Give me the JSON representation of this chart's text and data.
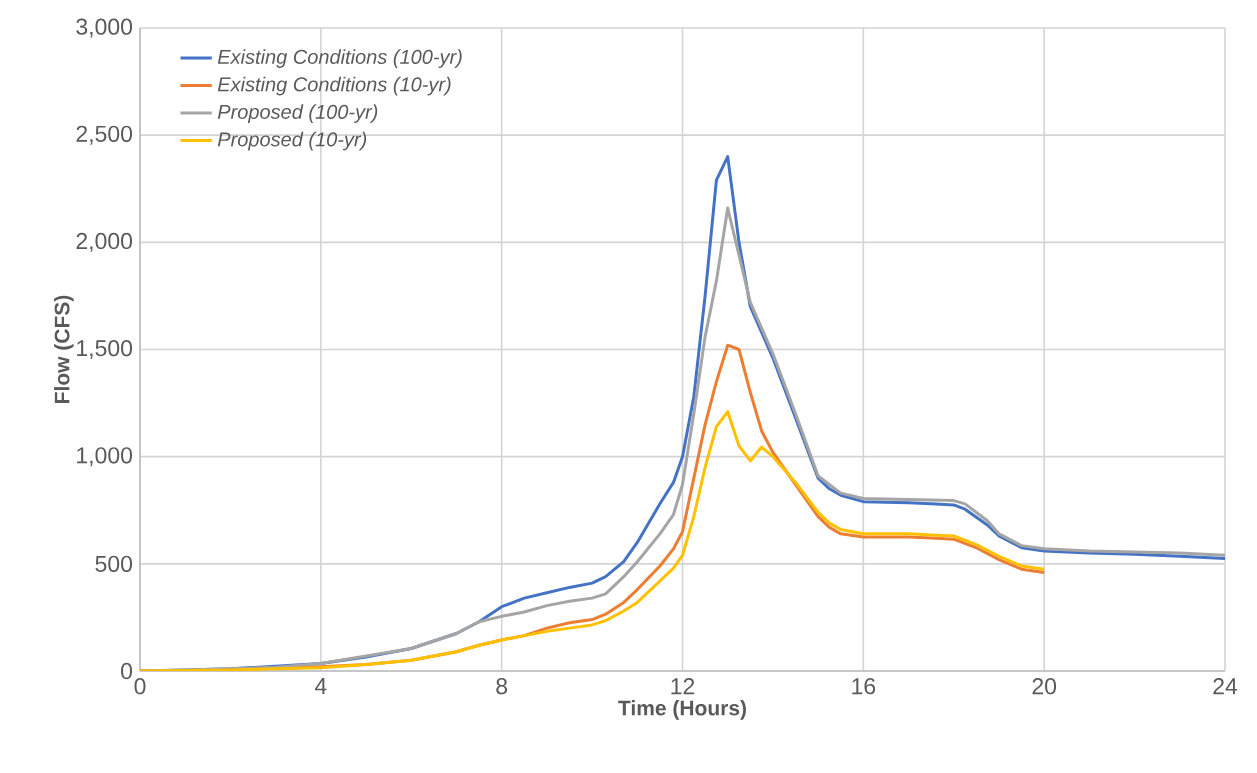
{
  "chart_data": {
    "type": "line",
    "xlabel": "Time (Hours)",
    "ylabel": "Flow (CFS)",
    "xlim": [
      0,
      24
    ],
    "ylim": [
      0,
      3000
    ],
    "xticks": [
      0,
      4,
      8,
      12,
      16,
      20,
      24
    ],
    "yticks": [
      0,
      500,
      {
        "value": 1000,
        "label": "1,000"
      },
      {
        "value": 1500,
        "label": "1,500"
      },
      {
        "value": 2000,
        "label": "2,000"
      },
      {
        "value": 2500,
        "label": "2,500"
      },
      {
        "value": 3000,
        "label": "3,000"
      }
    ],
    "grid": true,
    "legend": "top left",
    "marker": "none",
    "line_style": "solid",
    "series": [
      {
        "name": "Existing Conditions (100-yr)",
        "color": "#4472c4",
        "x": [
          0,
          1,
          2,
          3,
          4,
          5,
          6,
          7,
          7.5,
          8,
          8.5,
          9,
          9.5,
          10,
          10.3,
          10.7,
          11,
          11.5,
          11.8,
          12,
          12.25,
          12.5,
          12.75,
          13,
          13.25,
          13.5,
          14,
          14.5,
          15,
          15.25,
          15.5,
          16,
          17,
          17.5,
          18,
          18.25,
          18.75,
          19,
          19.5,
          20,
          21,
          22,
          23,
          24
        ],
        "values": [
          0,
          5,
          10,
          null,
          35,
          65,
          105,
          175,
          230,
          300,
          340,
          365,
          390,
          410,
          440,
          510,
          600,
          780,
          880,
          1000,
          1280,
          1750,
          2290,
          2400,
          2000,
          1700,
          1460,
          1180,
          900,
          850,
          820,
          790,
          785,
          780,
          775,
          755,
          680,
          630,
          575,
          560,
          550,
          545,
          535,
          525
        ]
      },
      {
        "name": "Existing Conditions (10-yr)",
        "color": "#ed7d31",
        "x": [
          0,
          2,
          4,
          5,
          6,
          7,
          7.5,
          8,
          8.5,
          9,
          9.5,
          10,
          10.3,
          10.7,
          11,
          11.5,
          11.8,
          12,
          12.25,
          12.5,
          12.75,
          13,
          13.25,
          13.5,
          13.75,
          14,
          14.5,
          15,
          15.25,
          15.5,
          16,
          17,
          17.5,
          18,
          18.5,
          19,
          19.5,
          20
        ],
        "values": [
          0,
          5,
          20,
          30,
          50,
          90,
          120,
          145,
          165,
          200,
          225,
          240,
          265,
          320,
          380,
          490,
          570,
          650,
          900,
          1150,
          1350,
          1520,
          1500,
          1300,
          1120,
          1020,
          870,
          720,
          670,
          640,
          625,
          625,
          620,
          615,
          575,
          520,
          475,
          460
        ]
      },
      {
        "name": "Proposed (100-yr)",
        "color": "#a5a5a5",
        "x": [
          0,
          1,
          2,
          3,
          4,
          5,
          6,
          7,
          7.5,
          8,
          8.5,
          9,
          9.5,
          10,
          10.3,
          10.7,
          11,
          11.5,
          11.8,
          12,
          12.25,
          12.5,
          12.75,
          13,
          13.5,
          14,
          14.5,
          15,
          15.5,
          16,
          17,
          18,
          18.25,
          18.75,
          19,
          19.5,
          20,
          21,
          22,
          23,
          24
        ],
        "values": [
          0,
          5,
          10,
          18,
          35,
          70,
          105,
          175,
          230,
          255,
          275,
          305,
          325,
          340,
          360,
          440,
          510,
          640,
          730,
          870,
          1200,
          1560,
          1820,
          2160,
          1720,
          1480,
          1200,
          910,
          830,
          805,
          800,
          795,
          780,
          700,
          640,
          585,
          570,
          560,
          555,
          550,
          540
        ]
      },
      {
        "name": "Proposed (10-yr)",
        "color": "#ffc000",
        "x": [
          0,
          2,
          4,
          5,
          6,
          7,
          7.5,
          8,
          8.5,
          9,
          9.5,
          10,
          10.3,
          10.7,
          11,
          11.5,
          11.8,
          12,
          12.25,
          12.5,
          12.75,
          13,
          13.25,
          13.5,
          13.75,
          14,
          14.5,
          15,
          15.25,
          15.5,
          16,
          17,
          17.5,
          18,
          18.5,
          19,
          19.5,
          20
        ],
        "values": [
          0,
          5,
          15,
          30,
          50,
          90,
          120,
          145,
          165,
          185,
          200,
          215,
          235,
          280,
          320,
          420,
          480,
          540,
          720,
          950,
          1140,
          1210,
          1050,
          980,
          1045,
          1000,
          880,
          740,
          690,
          660,
          640,
          640,
          635,
          630,
          590,
          535,
          490,
          475
        ]
      }
    ]
  }
}
